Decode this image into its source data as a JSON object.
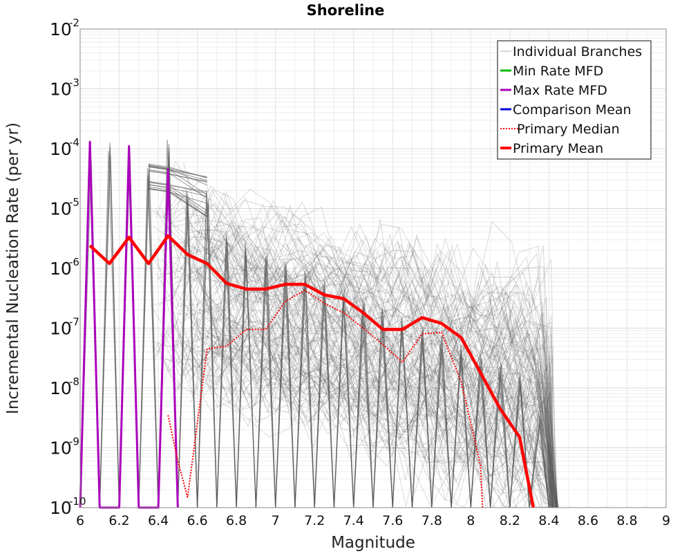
{
  "chart_data": {
    "type": "line",
    "title": "Shoreline",
    "xlabel": "Magnitude",
    "ylabel": "Incremental Nucleation Rate (per yr)",
    "xlim": [
      6,
      9
    ],
    "ylim_log10": [
      -10,
      -2
    ],
    "y_scale": "log",
    "grid": true,
    "legend_position": "top-right",
    "x_ticks": [
      "6",
      "6.2",
      "6.4",
      "6.6",
      "6.8",
      "7",
      "7.2",
      "7.4",
      "7.6",
      "7.8",
      "8",
      "8.2",
      "8.4",
      "8.6",
      "8.8",
      "9"
    ],
    "y_ticks": [
      {
        "base": "10",
        "exp": "-2",
        "log": -2
      },
      {
        "base": "10",
        "exp": "-3",
        "log": -3
      },
      {
        "base": "10",
        "exp": "-4",
        "log": -4
      },
      {
        "base": "10",
        "exp": "-5",
        "log": -5
      },
      {
        "base": "10",
        "exp": "-6",
        "log": -6
      },
      {
        "base": "10",
        "exp": "-7",
        "log": -7
      },
      {
        "base": "10",
        "exp": "-8",
        "log": -8
      },
      {
        "base": "10",
        "exp": "-9",
        "log": -9
      },
      {
        "base": "10",
        "exp": "-10",
        "log": -10
      }
    ],
    "colors": {
      "branches": "#555555",
      "min_rate": "#00bb00",
      "max_rate": "#aa00bb",
      "comparison_mean": "#0000dd",
      "primary_median": "#ff0000",
      "primary_mean": "#ff0000"
    },
    "legend": [
      {
        "label": "Individual Branches",
        "key": "branches",
        "style": "thin"
      },
      {
        "label": "Min Rate MFD",
        "key": "min_rate",
        "style": "solid"
      },
      {
        "label": "Max Rate MFD",
        "key": "max_rate",
        "style": "solid"
      },
      {
        "label": "Comparison Mean",
        "key": "comparison_mean",
        "style": "solid"
      },
      {
        "label": " Primary Median",
        "key": "primary_median",
        "style": "dotted"
      },
      {
        "label": "Primary Mean",
        "key": "primary_mean",
        "style": "thick"
      }
    ],
    "series": [
      {
        "name": "Primary Mean",
        "key": "primary_mean",
        "x": [
          6.05,
          6.15,
          6.25,
          6.35,
          6.45,
          6.55,
          6.65,
          6.75,
          6.85,
          6.95,
          7.05,
          7.15,
          7.25,
          7.35,
          7.45,
          7.55,
          7.65,
          7.75,
          7.85,
          7.95,
          8.05,
          8.15,
          8.25,
          8.32
        ],
        "y": [
          2.4e-06,
          1.2e-06,
          3.3e-06,
          1.2e-06,
          3.5e-06,
          1.7e-06,
          1.2e-06,
          5.6e-07,
          4.5e-07,
          4.5e-07,
          5.4e-07,
          5.4e-07,
          3.6e-07,
          3.1e-07,
          1.8e-07,
          9.5e-08,
          9.5e-08,
          1.5e-07,
          1.2e-07,
          7e-08,
          1.8e-08,
          4.5e-09,
          1.5e-09,
          1e-10
        ]
      },
      {
        "name": "Primary Median",
        "key": "primary_median",
        "x": [
          6.45,
          6.5,
          6.55,
          6.65,
          6.75,
          6.85,
          6.95,
          7.05,
          7.15,
          7.25,
          7.35,
          7.45,
          7.55,
          7.65,
          7.75,
          7.85,
          7.95,
          8.05,
          8.06
        ],
        "y": [
          3.5e-09,
          6e-10,
          1.5e-10,
          4.5e-08,
          5e-08,
          9.5e-08,
          9.5e-08,
          2.8e-07,
          4.3e-07,
          2.6e-07,
          1.8e-07,
          1e-07,
          5.3e-08,
          2.7e-08,
          8e-08,
          8.5e-08,
          1.3e-08,
          5e-10,
          1e-10
        ]
      },
      {
        "name": "Max Rate MFD",
        "key": "max_rate",
        "x": [
          6.0,
          6.05,
          6.1,
          6.2,
          6.25,
          6.3,
          6.4,
          6.45,
          6.5
        ],
        "y": [
          1e-10,
          0.00013,
          1e-10,
          1e-10,
          0.00011,
          1e-10,
          1e-10,
          4.5e-05,
          1e-10
        ]
      }
    ]
  }
}
